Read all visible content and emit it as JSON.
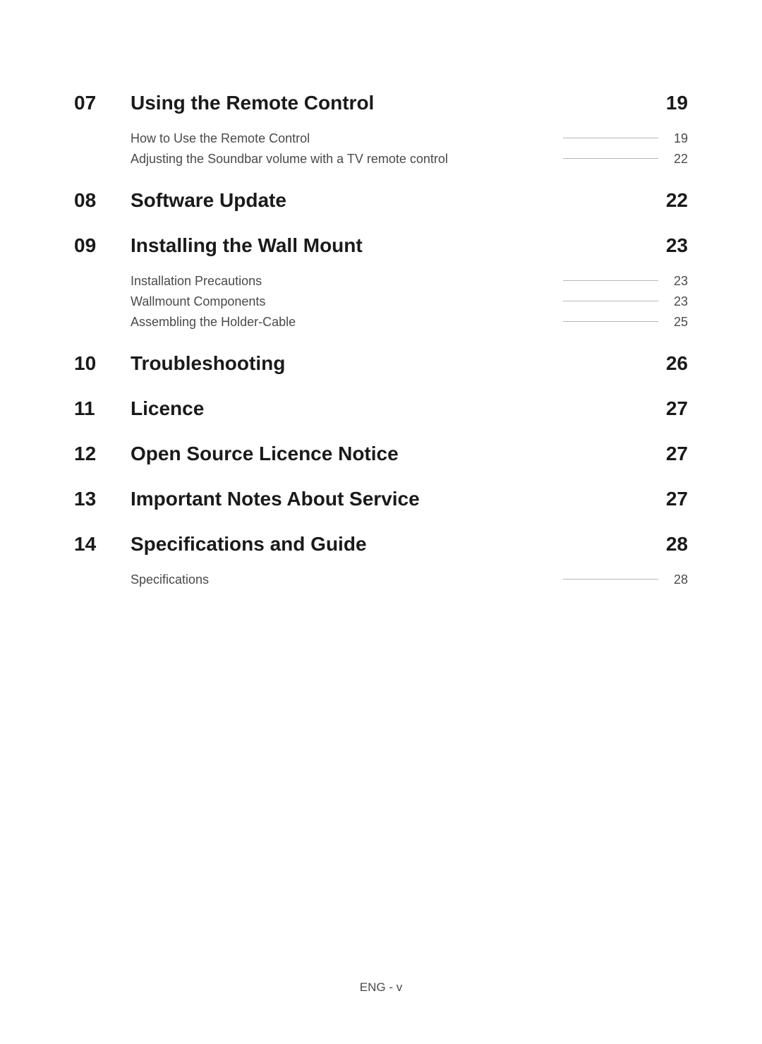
{
  "sections": [
    {
      "number": "07",
      "title": "Using the Remote Control",
      "page": "19",
      "subitems": [
        {
          "title": "How to Use the Remote Control",
          "page": "19"
        },
        {
          "title": "Adjusting the Soundbar volume with a TV remote control",
          "page": "22"
        }
      ]
    },
    {
      "number": "08",
      "title": "Software Update",
      "page": "22",
      "subitems": []
    },
    {
      "number": "09",
      "title": "Installing the Wall Mount",
      "page": "23",
      "subitems": [
        {
          "title": "Installation Precautions",
          "page": "23"
        },
        {
          "title": "Wallmount Components",
          "page": "23"
        },
        {
          "title": "Assembling the Holder-Cable",
          "page": "25"
        }
      ]
    },
    {
      "number": "10",
      "title": "Troubleshooting",
      "page": "26",
      "subitems": []
    },
    {
      "number": "11",
      "title": "Licence",
      "page": "27",
      "subitems": []
    },
    {
      "number": "12",
      "title": "Open Source Licence Notice",
      "page": "27",
      "subitems": []
    },
    {
      "number": "13",
      "title": "Important Notes About Service",
      "page": "27",
      "subitems": []
    },
    {
      "number": "14",
      "title": "Specifications and Guide",
      "page": "28",
      "subitems": [
        {
          "title": "Specifications",
          "page": "28"
        }
      ]
    }
  ],
  "footer": "ENG - v",
  "styles": {
    "background_color": "#ffffff",
    "text_color": "#1a1a1a",
    "subitem_color": "#4a4a4a",
    "leader_color": "#b8b8b8",
    "section_title_fontsize": 28,
    "subitem_fontsize": 18,
    "footer_fontsize": 17
  }
}
